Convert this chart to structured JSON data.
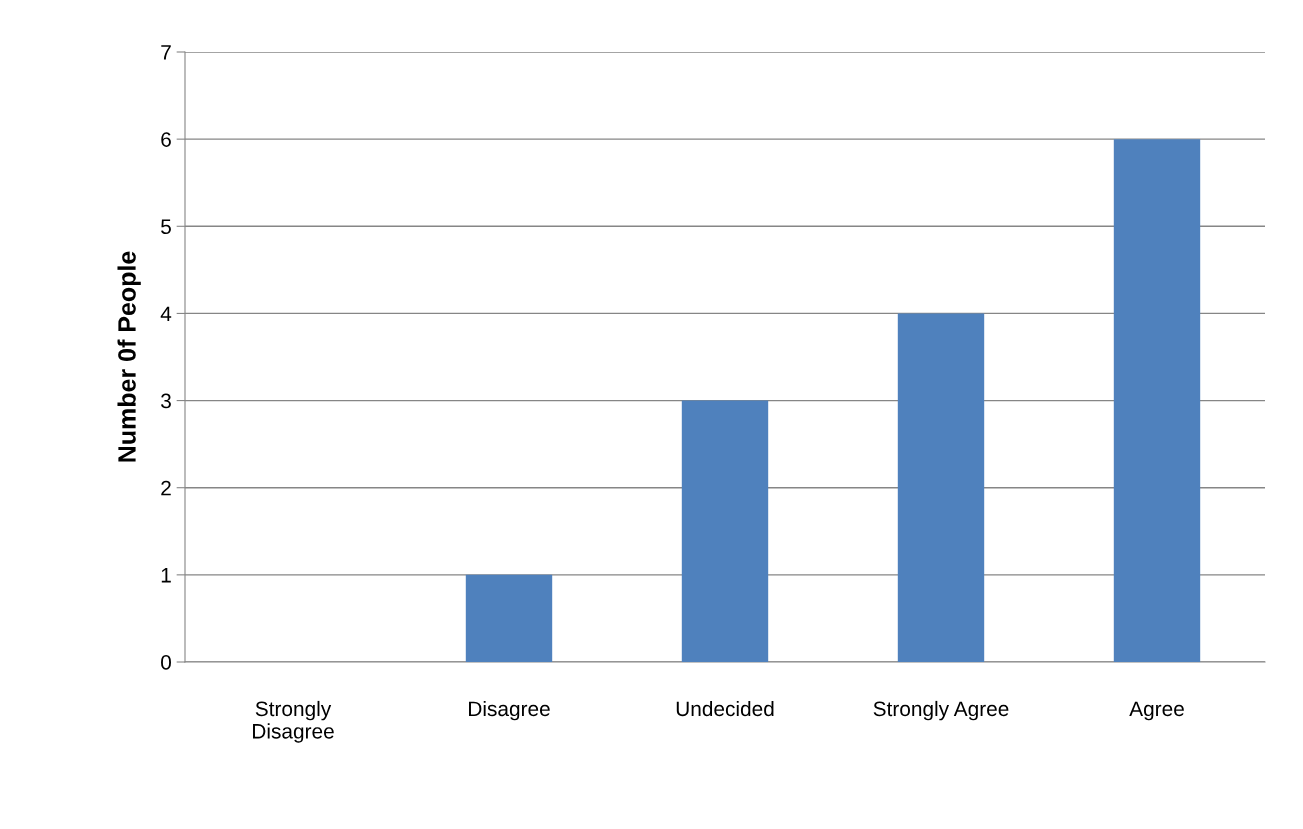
{
  "chart_data": {
    "type": "bar",
    "ylabel": "Number 0f People",
    "categories": [
      "Strongly\nDisagree",
      "Disagree",
      "Undecided",
      "Strongly Agree",
      "Agree"
    ],
    "values": [
      0,
      1,
      3,
      4,
      6
    ],
    "color": "#4f81bd",
    "ylim": [
      0,
      7
    ],
    "yticks": [
      0,
      1,
      2,
      3,
      4,
      5,
      6,
      7
    ],
    "grid": "y",
    "legend": false
  }
}
